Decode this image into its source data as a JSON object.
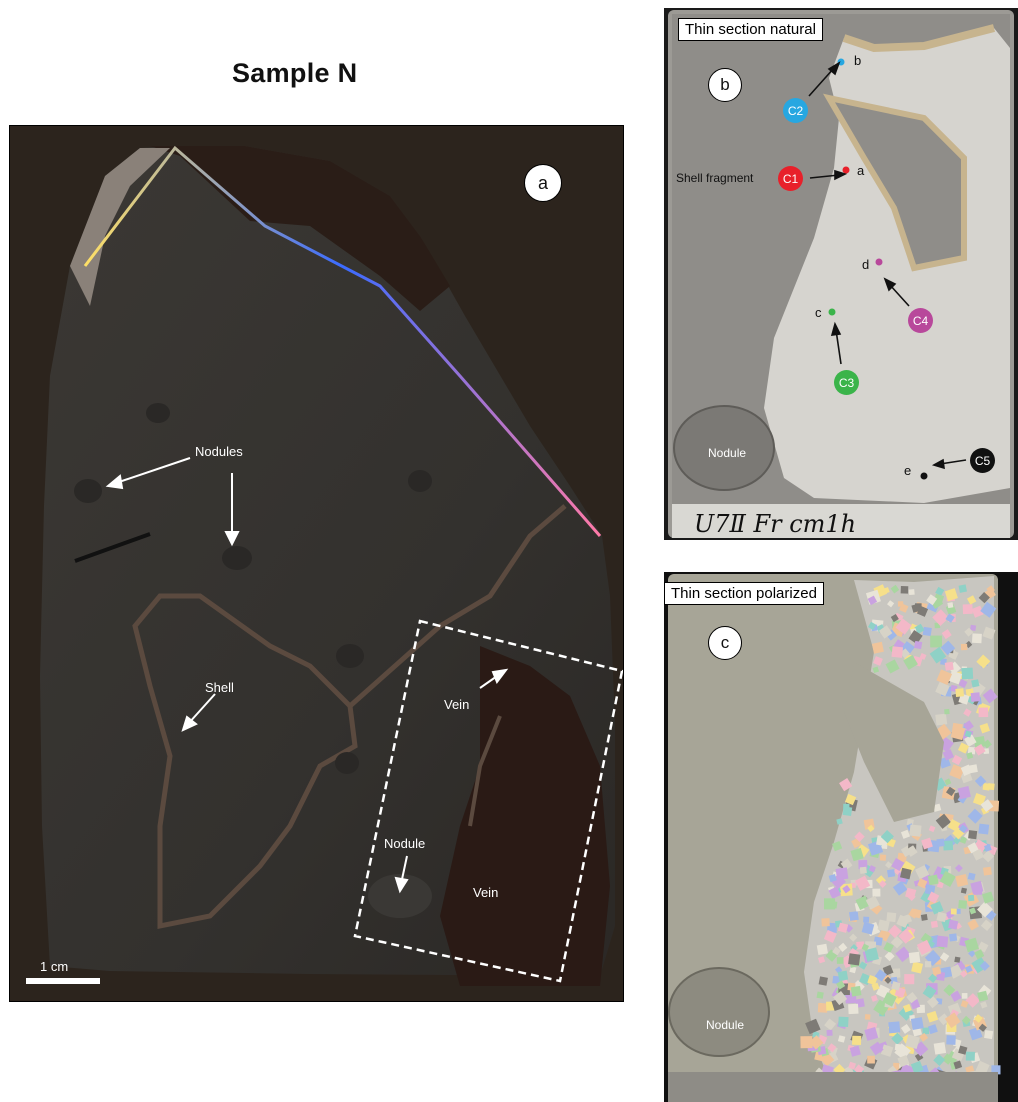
{
  "title": "Sample N",
  "panel_a": {
    "letter": "a",
    "labels": {
      "nodules": "Nodules",
      "shell": "Shell",
      "vein_top": "Vein",
      "nodule": "Nodule",
      "vein_bottom": "Vein"
    },
    "scale": "1 cm"
  },
  "panel_b": {
    "caption": "Thin section natural",
    "letter": "b",
    "points": {
      "C1": "C1",
      "C2": "C2",
      "C3": "C3",
      "C4": "C4",
      "C5": "C5",
      "a": "a",
      "b": "b",
      "c": "c",
      "d": "d",
      "e": "e"
    },
    "shell_fragment": "Shell fragment",
    "nodule": "Nodule",
    "handwriting": "U7Ⅱ  Fr  cm1h"
  },
  "panel_c": {
    "caption": "Thin section polarized",
    "letter": "c",
    "nodule": "Nodule"
  },
  "colors": {
    "C1": "#e8202a",
    "C2": "#27a7e1",
    "C3": "#3bb44a",
    "C4": "#b8489b",
    "C5": "#111111"
  }
}
